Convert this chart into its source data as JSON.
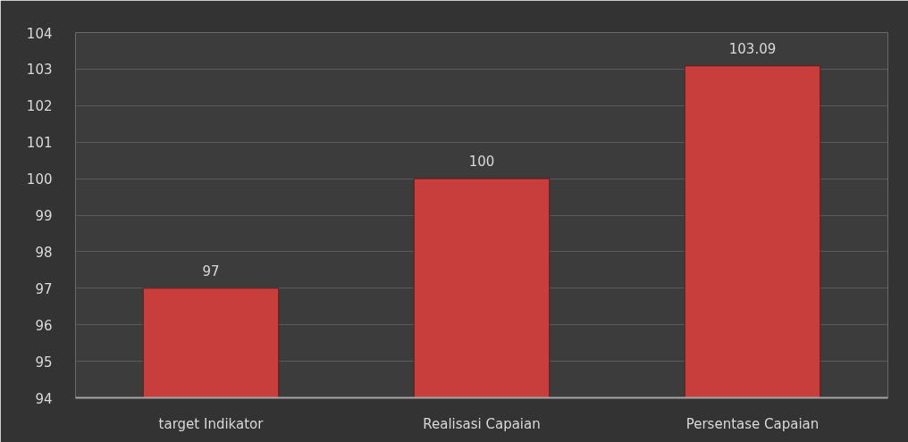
{
  "chart_data": {
    "type": "bar",
    "categories": [
      "target Indikator",
      "Realisasi Capaian",
      "Persentase Capaian"
    ],
    "values": [
      97,
      100,
      103.09
    ],
    "color": "#c83e3c",
    "ylim": [
      94,
      104
    ],
    "yticks": [
      94,
      95,
      96,
      97,
      98,
      99,
      100,
      101,
      102,
      103,
      104
    ],
    "grid": "y",
    "data_labels": true
  }
}
